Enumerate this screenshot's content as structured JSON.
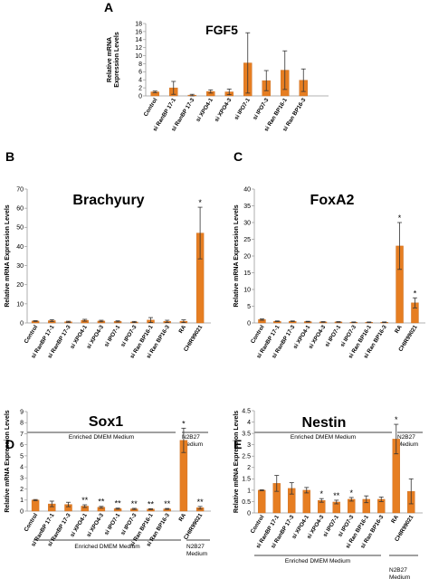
{
  "colors": {
    "bar": "#e67e22",
    "bar_edge": "#c8691a",
    "axis": "#999999",
    "error": "#333333"
  },
  "groups": {
    "enriched": "Enriched DMEM Medium",
    "n2b27": [
      "N2B27",
      "Medium"
    ]
  },
  "chart_data": [
    {
      "panel": "A",
      "type": "bar",
      "title": "FGF5",
      "ylabel": [
        "Relative mRNA",
        "Expression Levels"
      ],
      "ylim": [
        0,
        18
      ],
      "yticks": [
        0,
        2,
        4,
        6,
        8,
        10,
        12,
        14,
        16,
        18
      ],
      "grid": false,
      "legend": "none",
      "categories": [
        "Control",
        "si RanBP 17-1",
        "si RanBP 17-3",
        "si XPO4-1",
        "si XPO4-3",
        "si IPO7-1",
        "si IPO7-3",
        "si Ran BP16-1",
        "si Ran BP16-3"
      ],
      "values": [
        1.0,
        2.0,
        0.2,
        1.1,
        1.0,
        8.2,
        3.8,
        6.4,
        3.9
      ],
      "errors": [
        0.2,
        1.6,
        0.2,
        0.4,
        0.7,
        7.5,
        2.5,
        4.8,
        2.8
      ],
      "significance": [
        "",
        "",
        "",
        "",
        "",
        "",
        "",
        "",
        ""
      ]
    },
    {
      "panel": "B",
      "type": "bar",
      "title": "Brachyury",
      "ylabel": [
        "Relative mRNA Expression Levels"
      ],
      "ylim": [
        0,
        70
      ],
      "yticks": [
        0,
        10,
        20,
        30,
        40,
        50,
        60,
        70
      ],
      "grid": false,
      "legend": "none",
      "categories": [
        "Control",
        "si RanBP 17-1",
        "si RanBP 17-3",
        "si XPO4-1",
        "si XPO4-3",
        "si IPO7-1",
        "si IPO7-3",
        "si Ran BP16-1",
        "si Ran BP16-3",
        "RA",
        "CHIR99021"
      ],
      "values": [
        1.0,
        1.2,
        0.6,
        1.4,
        1.0,
        0.8,
        0.5,
        1.5,
        0.8,
        0.9,
        47.0
      ],
      "errors": [
        0.2,
        0.5,
        0.3,
        0.5,
        0.4,
        0.3,
        0.3,
        1.3,
        0.6,
        0.7,
        13.5
      ],
      "significance": [
        "",
        "",
        "",
        "",
        "",
        "",
        "",
        "",
        "",
        "",
        "*"
      ]
    },
    {
      "panel": "C",
      "type": "bar",
      "title": "FoxA2",
      "ylabel": [
        "Relative mRNA Expression Levels"
      ],
      "ylim": [
        0,
        40
      ],
      "yticks": [
        0,
        5,
        10,
        15,
        20,
        25,
        30,
        35,
        40
      ],
      "grid": false,
      "legend": "none",
      "categories": [
        "Control",
        "si RanBP 17-1",
        "si RanBP 17-3",
        "si XPO4-1",
        "si XPO4-3",
        "si IPO7-1",
        "si IPO7-3",
        "si Ran BP16-1",
        "si Ran BP16-3",
        "RA",
        "CHIR99021"
      ],
      "values": [
        1.0,
        0.5,
        0.5,
        0.4,
        0.3,
        0.3,
        0.2,
        0.2,
        0.2,
        23.0,
        6.0
      ],
      "errors": [
        0.2,
        0.1,
        0.1,
        0.1,
        0.1,
        0.1,
        0.1,
        0.1,
        0.1,
        7.0,
        1.5
      ],
      "significance": [
        "",
        "",
        "",
        "",
        "",
        "",
        "",
        "",
        "",
        "*",
        "*"
      ]
    },
    {
      "panel": "D",
      "type": "bar",
      "title": "Sox1",
      "ylabel": [
        "Relative mRNA Expression Levels"
      ],
      "ylim": [
        0,
        9
      ],
      "yticks": [
        0,
        1,
        2,
        3,
        4,
        5,
        6,
        7,
        8,
        9
      ],
      "grid": false,
      "legend": "none",
      "categories": [
        "Control",
        "si RanBP 17-1",
        "si RanBP 17-3",
        "si XPO4-1",
        "si XPO4-3",
        "si IPO7-1",
        "si IPO7-3",
        "si Ran BP16-1",
        "si Ran BP16-3",
        "RA",
        "CHIR99021"
      ],
      "values": [
        1.0,
        0.65,
        0.6,
        0.45,
        0.35,
        0.22,
        0.2,
        0.18,
        0.2,
        6.4,
        0.3
      ],
      "errors": [
        0.05,
        0.25,
        0.2,
        0.12,
        0.08,
        0.05,
        0.05,
        0.04,
        0.04,
        1.1,
        0.12
      ],
      "significance": [
        "",
        "",
        "",
        "**",
        "**",
        "**",
        "**",
        "**",
        "**",
        "*",
        "**"
      ]
    },
    {
      "panel": "E",
      "type": "bar",
      "title": "Nestin",
      "ylabel": [
        "Relative mRNA Expression Levels"
      ],
      "ylim": [
        0,
        4.5
      ],
      "yticks": [
        0,
        0.5,
        1,
        1.5,
        2,
        2.5,
        3,
        3.5,
        4,
        4.5
      ],
      "grid": false,
      "legend": "none",
      "categories": [
        "Control",
        "si RanBP 17-1",
        "si RanBP 17-3",
        "si XPO4-1",
        "si XPO4-3",
        "si IPO7-1",
        "si IPO7-3",
        "si Ran BP16-1",
        "si Ran BP16-3",
        "RA",
        "CHIR99021"
      ],
      "values": [
        1.0,
        1.3,
        1.08,
        1.0,
        0.55,
        0.48,
        0.6,
        0.6,
        0.6,
        3.25,
        0.95
      ],
      "errors": [
        0.02,
        0.35,
        0.25,
        0.12,
        0.08,
        0.08,
        0.08,
        0.15,
        0.1,
        0.65,
        0.55
      ],
      "significance": [
        "",
        "",
        "",
        "",
        "*",
        "**",
        "*",
        "",
        "",
        "*",
        ""
      ]
    }
  ]
}
